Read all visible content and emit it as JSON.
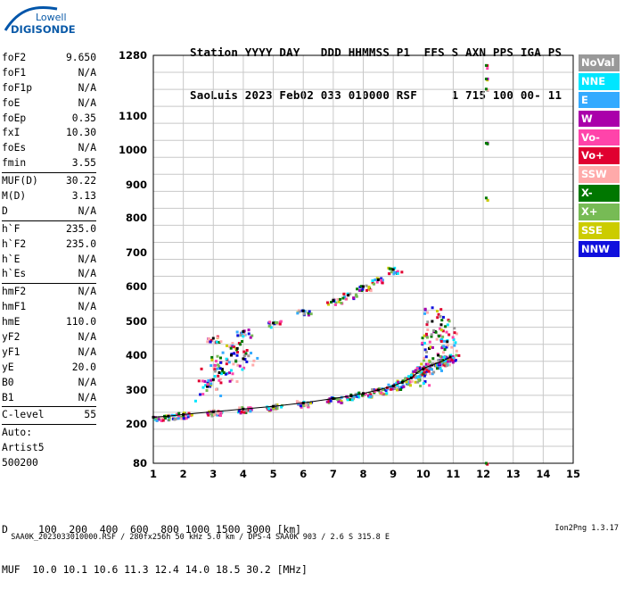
{
  "logo": {
    "line1": "Lowell",
    "line2": "DIGISONDE"
  },
  "header": {
    "row1": "Station YYYY DAY   DDD HHMMSS P1  FFS S AXN PPS IGA PS",
    "row2": "SaoLuis 2023 Feb02 033 010000 RSF     1 715 100 00- 11"
  },
  "params": {
    "group1": [
      {
        "name": "foF2",
        "value": "9.650"
      },
      {
        "name": "foF1",
        "value": "N/A"
      },
      {
        "name": "foF1p",
        "value": "N/A"
      },
      {
        "name": "foE",
        "value": "N/A"
      },
      {
        "name": "foEp",
        "value": "0.35"
      },
      {
        "name": "fxI",
        "value": "10.30"
      },
      {
        "name": "foEs",
        "value": "N/A"
      },
      {
        "name": "fmin",
        "value": "3.55"
      }
    ],
    "group2": [
      {
        "name": "MUF(D)",
        "value": "30.22"
      },
      {
        "name": "M(D)",
        "value": "3.13"
      },
      {
        "name": "D",
        "value": "N/A"
      }
    ],
    "group3": [
      {
        "name": "h`F",
        "value": "235.0"
      },
      {
        "name": "h`F2",
        "value": "235.0"
      },
      {
        "name": "h`E",
        "value": "N/A"
      },
      {
        "name": "h`Es",
        "value": "N/A"
      }
    ],
    "group4": [
      {
        "name": "hmF2",
        "value": "N/A"
      },
      {
        "name": "hmF1",
        "value": "N/A"
      },
      {
        "name": "hmE",
        "value": "110.0"
      },
      {
        "name": "yF2",
        "value": "N/A"
      },
      {
        "name": "yF1",
        "value": "N/A"
      },
      {
        "name": "yE",
        "value": "20.0"
      },
      {
        "name": "B0",
        "value": "N/A"
      },
      {
        "name": "B1",
        "value": "N/A"
      }
    ],
    "group5": [
      {
        "name": "C-level",
        "value": "55"
      }
    ],
    "group6": [
      "Auto:",
      "Artist5",
      "500200"
    ]
  },
  "legend": [
    {
      "label": "NoVal",
      "color": "#999999"
    },
    {
      "label": "NNE",
      "color": "#00e6ff"
    },
    {
      "label": "E",
      "color": "#33aaff"
    },
    {
      "label": "W",
      "color": "#aa00aa"
    },
    {
      "label": "Vo-",
      "color": "#ff44aa"
    },
    {
      "label": "Vo+",
      "color": "#e00030"
    },
    {
      "label": "SSW",
      "color": "#ffaaaa"
    },
    {
      "label": "X-",
      "color": "#007700"
    },
    {
      "label": "X+",
      "color": "#77bb55"
    },
    {
      "label": "SSE",
      "color": "#cccc00"
    },
    {
      "label": "NNW",
      "color": "#1010dd"
    }
  ],
  "bottom": {
    "row1": "D     100  200  400  600  800 1000 1500 3000 [km]",
    "row2": "MUF  10.0 10.1 10.6 11.3 12.4 14.0 18.5 30.2 [MHz]"
  },
  "footer": {
    "left": "SAA0K_2023033010000.RSF / 280fx256h 50 kHz 5.0 km / DPS-4 SAA0K 903 / 2.6 S 315.8 E",
    "right": "Ion2Png 1.3.17"
  },
  "chart_data": {
    "type": "scatter",
    "xlim": [
      1,
      15
    ],
    "ylim_ticks": [
      "80",
      "200",
      "300",
      "400",
      "500",
      "600",
      "700",
      "800",
      "900",
      "1000",
      "1100",
      "1280"
    ],
    "x_ticks": [
      "1",
      "2",
      "3",
      "4",
      "5",
      "6",
      "7",
      "8",
      "9",
      "10",
      "11",
      "12",
      "13",
      "14",
      "15"
    ],
    "grid": true,
    "y_scale": "compressed-height (80–1280 km)",
    "series": [
      {
        "name": "F-trace",
        "color_key": "mixed",
        "x": [
          1.0,
          1.5,
          2.0,
          3.0,
          4.0,
          5.0,
          6.0,
          7.0,
          7.6,
          8.0,
          8.5,
          9.0,
          9.3,
          9.6,
          9.8,
          10.0,
          10.3,
          10.6,
          10.8,
          10.9
        ],
        "y": [
          220,
          223,
          228,
          236,
          244,
          252,
          262,
          275,
          283,
          290,
          300,
          312,
          322,
          335,
          350,
          362,
          372,
          382,
          390,
          395
        ]
      },
      {
        "name": "second-hop",
        "color_key": "mixed",
        "x": [
          3.0,
          4.0,
          5.0,
          6.0,
          7.0,
          7.5,
          8.0,
          8.5,
          9.0
        ],
        "y": [
          450,
          470,
          495,
          530,
          560,
          575,
          600,
          620,
          650
        ]
      },
      {
        "name": "cusp-cluster",
        "color_key": "mixed",
        "x": [
          10.0,
          10.2,
          10.4,
          10.6,
          10.8,
          10.3,
          10.5
        ],
        "y": [
          360,
          420,
          470,
          490,
          440,
          500,
          400
        ]
      },
      {
        "name": "spread-echoes",
        "color_key": "mixed",
        "x": [
          3.0,
          3.3,
          3.6,
          4.0,
          2.8,
          3.2,
          3.8
        ],
        "y": [
          330,
          360,
          400,
          390,
          310,
          350,
          420
        ]
      },
      {
        "name": "vertical-line",
        "color_key": "X-",
        "x": [
          12.1,
          12.1,
          12.1,
          12.1,
          12.1,
          12.1
        ],
        "y": [
          1250,
          1210,
          1180,
          1020,
          860,
          80
        ]
      }
    ]
  }
}
